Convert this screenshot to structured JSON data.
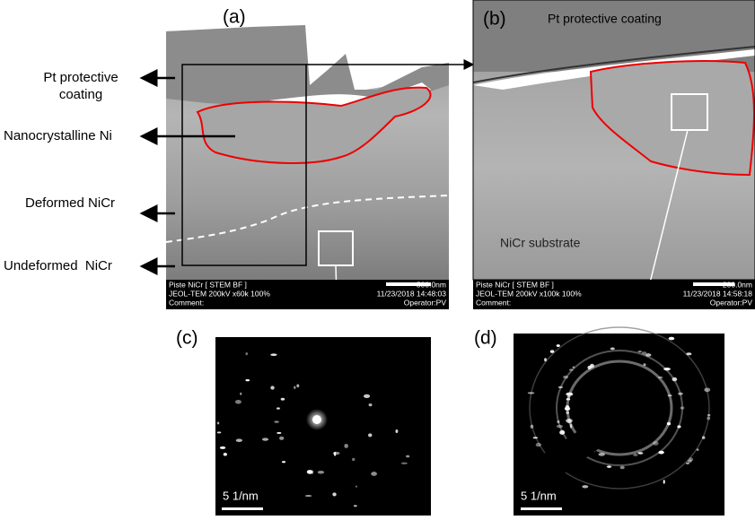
{
  "panels": {
    "a": {
      "label": "(a)",
      "bar": {
        "title": "Piste NiCr [ STEM BF ]",
        "instrument": "JEOL-TEM 200kV x60k 100%",
        "comment": "Comment:",
        "scale": "500.0nm",
        "date": "11/23/2018 14:48:03",
        "operator": "Operator:PV"
      }
    },
    "b": {
      "label": "(b)",
      "coating": "Pt protective coating",
      "substrate": "NiCr substrate",
      "bar": {
        "title": "Piste NiCr [ STEM BF ]",
        "instrument": "JEOL-TEM 200kV x100k 100%",
        "comment": "Comment:",
        "scale": "200.0nm",
        "date": "11/23/2018 14:58:18",
        "operator": "Operator:PV"
      }
    },
    "c": {
      "label": "(c)",
      "scale": "5 1/nm"
    },
    "d": {
      "label": "(d)",
      "scale": "5 1/nm"
    }
  },
  "annotations": [
    {
      "lines": [
        "Pt protective",
        "coating"
      ]
    },
    {
      "lines": [
        "Nanocrystalline Ni"
      ]
    },
    {
      "lines": [
        "Deformed NiCr"
      ]
    },
    {
      "lines": [
        "Undeformed  NiCr"
      ]
    }
  ]
}
